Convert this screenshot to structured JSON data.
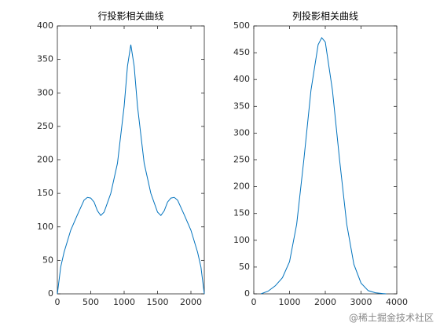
{
  "chart_data": [
    {
      "type": "line",
      "title": "行投影相关曲线",
      "x": [
        0,
        50,
        100,
        200,
        300,
        400,
        450,
        500,
        550,
        600,
        650,
        700,
        800,
        900,
        1000,
        1050,
        1100,
        1150,
        1200,
        1300,
        1400,
        1500,
        1550,
        1600,
        1650,
        1700,
        1750,
        1800,
        1900,
        2000,
        2100,
        2150,
        2200
      ],
      "series": [
        {
          "color": "#0072bd",
          "values": [
            0,
            40,
            62,
            95,
            118,
            140,
            144,
            143,
            137,
            124,
            117,
            122,
            150,
            195,
            280,
            340,
            372,
            340,
            280,
            195,
            150,
            122,
            117,
            124,
            137,
            143,
            144,
            140,
            118,
            95,
            62,
            40,
            0
          ]
        }
      ],
      "xlim": [
        0,
        2200
      ],
      "xticks": [
        0,
        500,
        1000,
        1500,
        2000
      ],
      "ylim": [
        0,
        400
      ],
      "yticks": [
        0,
        50,
        100,
        150,
        200,
        250,
        300,
        350,
        400
      ],
      "grid": false
    },
    {
      "type": "line",
      "title": "列投影相关曲线",
      "x": [
        200,
        400,
        600,
        800,
        1000,
        1200,
        1400,
        1600,
        1800,
        1900,
        2000,
        2200,
        2400,
        2600,
        2800,
        3000,
        3200,
        3400,
        3600,
        3700
      ],
      "series": [
        {
          "color": "#0072bd",
          "values": [
            0,
            5,
            15,
            30,
            60,
            130,
            250,
            380,
            465,
            478,
            470,
            380,
            250,
            130,
            55,
            20,
            6,
            2,
            0.5,
            0
          ]
        }
      ],
      "xlim": [
        0,
        4000
      ],
      "xticks": [
        0,
        1000,
        2000,
        3000,
        4000
      ],
      "ylim": [
        0,
        500
      ],
      "yticks": [
        0,
        50,
        100,
        150,
        200,
        250,
        300,
        350,
        400,
        450,
        500
      ],
      "grid": false
    }
  ],
  "watermark": "@稀土掘金技术社区"
}
